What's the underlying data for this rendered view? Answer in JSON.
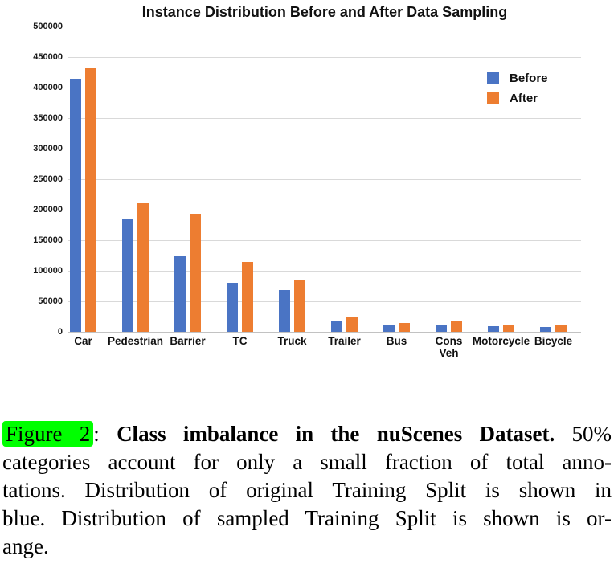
{
  "chart_data": {
    "type": "bar",
    "title": "Instance Distribution Before and After Data Sampling",
    "categories": [
      "Car",
      "Pedestrian",
      "Barrier",
      "TC",
      "Truck",
      "Trailer",
      "Bus",
      "Cons Veh",
      "Motorcycle",
      "Bicycle"
    ],
    "category_display": [
      "Car",
      "Pedestrian",
      "Barrier",
      "TC",
      "Truck",
      "Trailer",
      "Bus",
      "Cons\nVeh",
      "Motorcycle",
      "Bicycle"
    ],
    "series": [
      {
        "name": "Before",
        "color": "#4a74c4",
        "values": [
          414000,
          185000,
          124000,
          80000,
          69000,
          18000,
          11500,
          11000,
          9000,
          7500
        ]
      },
      {
        "name": "After",
        "color": "#ed7d31",
        "values": [
          431000,
          210000,
          192000,
          115000,
          85000,
          25000,
          14000,
          16500,
          12000,
          11500
        ]
      }
    ],
    "ylim": [
      0,
      500000
    ],
    "ytick_step": 50000,
    "ytick_labels": [
      "0",
      "50000",
      "100000",
      "150000",
      "200000",
      "250000",
      "300000",
      "350000",
      "400000",
      "450000",
      "500000"
    ],
    "grid": true,
    "gridline_color": "#d9d9d9",
    "legend_position": "top-right",
    "xlabel": "",
    "ylabel": ""
  },
  "caption": {
    "highlight_color": "#00ff00",
    "lines": [
      {
        "segments": [
          {
            "text": "Figure 2",
            "highlight": true
          },
          {
            "text": ": "
          },
          {
            "text": "Class imbalance in the nuScenes Dataset.",
            "bold": true
          },
          {
            "text": " 50%"
          }
        ]
      },
      {
        "segments": [
          {
            "text": "categories account for only a small fraction of total anno-"
          }
        ]
      },
      {
        "segments": [
          {
            "text": "tations. Distribution of original Training Split is shown in"
          }
        ]
      },
      {
        "segments": [
          {
            "text": "blue. Distribution of sampled Training Split is shown is or-"
          }
        ]
      },
      {
        "segments": [
          {
            "text": "ange."
          }
        ],
        "last": true
      }
    ]
  }
}
